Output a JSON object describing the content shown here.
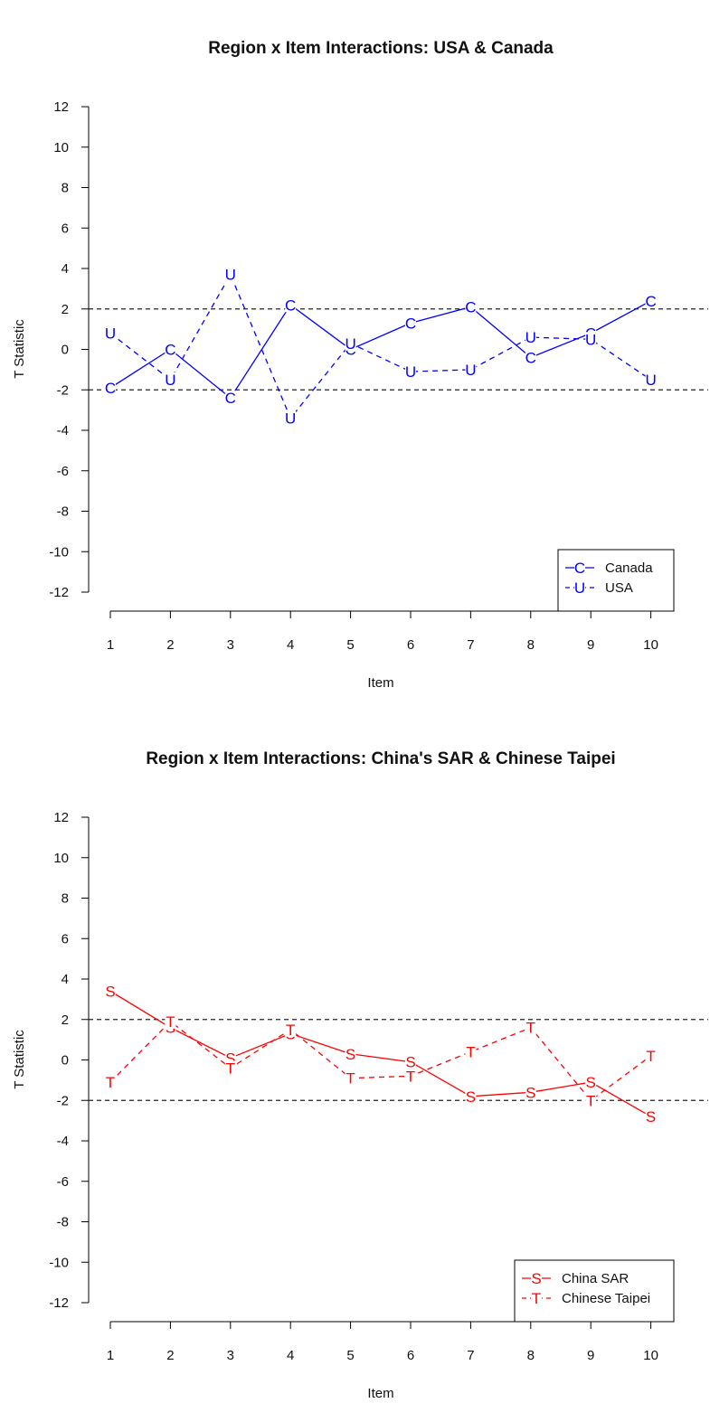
{
  "chart_data": [
    {
      "type": "line",
      "title": "Region x Item Interactions: USA & Canada",
      "xlabel": "Item",
      "ylabel": "T Statistic",
      "x": [
        1,
        2,
        3,
        4,
        5,
        6,
        7,
        8,
        9,
        10
      ],
      "xticks": [
        "1",
        "2",
        "3",
        "4",
        "5",
        "6",
        "7",
        "8",
        "9",
        "10"
      ],
      "yticks": [
        "-12",
        "-10",
        "-8",
        "-6",
        "-4",
        "-2",
        "0",
        "2",
        "4",
        "6",
        "8",
        "10",
        "12"
      ],
      "ylim": [
        -12,
        12
      ],
      "reference_lines": [
        2,
        -2
      ],
      "legend_position": "bottom-right",
      "series": [
        {
          "name": "Canada",
          "marker": "C",
          "line": "solid",
          "color": "#0000ff",
          "values": [
            -1.9,
            0.0,
            -2.4,
            2.2,
            0.0,
            1.3,
            2.1,
            -0.4,
            0.8,
            2.4
          ]
        },
        {
          "name": "USA",
          "marker": "U",
          "line": "dashed",
          "color": "#0000ff",
          "values": [
            0.8,
            -1.5,
            3.7,
            -3.4,
            0.3,
            -1.1,
            -1.0,
            0.6,
            0.5,
            -1.5
          ]
        }
      ]
    },
    {
      "type": "line",
      "title": "Region x Item Interactions: China's SAR & Chinese Taipei",
      "xlabel": "Item",
      "ylabel": "T Statistic",
      "x": [
        1,
        2,
        3,
        4,
        5,
        6,
        7,
        8,
        9,
        10
      ],
      "xticks": [
        "1",
        "2",
        "3",
        "4",
        "5",
        "6",
        "7",
        "8",
        "9",
        "10"
      ],
      "yticks": [
        "-12",
        "-10",
        "-8",
        "-6",
        "-4",
        "-2",
        "0",
        "2",
        "4",
        "6",
        "8",
        "10",
        "12"
      ],
      "ylim": [
        -12,
        12
      ],
      "reference_lines": [
        2,
        -2
      ],
      "legend_position": "bottom-right",
      "series": [
        {
          "name": "China SAR",
          "marker": "S",
          "line": "solid",
          "color": "#ff0000",
          "values": [
            3.4,
            1.6,
            0.1,
            1.3,
            0.3,
            -0.1,
            -1.8,
            -1.6,
            -1.1,
            -2.8
          ]
        },
        {
          "name": "Chinese Taipei",
          "marker": "T",
          "line": "dashed",
          "color": "#ff0000",
          "values": [
            -1.1,
            1.9,
            -0.4,
            1.5,
            -0.9,
            -0.8,
            0.4,
            1.6,
            -2.0,
            0.2
          ]
        }
      ]
    }
  ]
}
